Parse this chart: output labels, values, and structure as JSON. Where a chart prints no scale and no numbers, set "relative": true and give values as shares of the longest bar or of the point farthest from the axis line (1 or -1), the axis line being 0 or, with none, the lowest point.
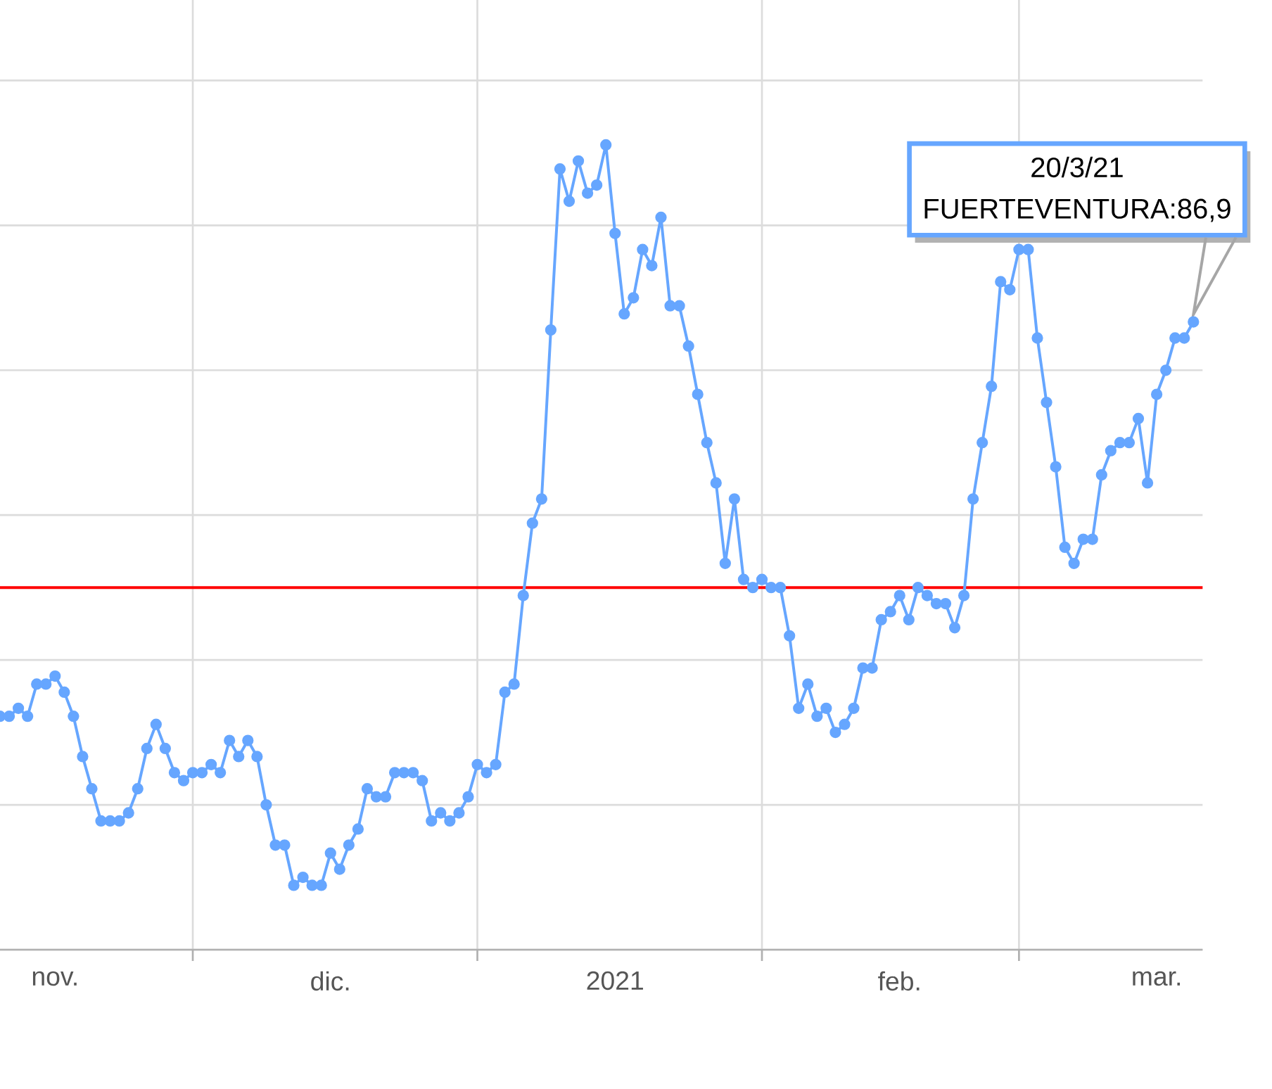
{
  "chart_data": {
    "type": "line",
    "relative": true,
    "color": "#66a6ff",
    "marker": "circle",
    "line_style": "solid",
    "grid": true,
    "tick_labels": "x",
    "x": [
      "2020-11-10",
      "2020-11-11",
      "2020-11-12",
      "2020-11-13",
      "2020-11-14",
      "2020-11-15",
      "2020-11-16",
      "2020-11-17",
      "2020-11-18",
      "2020-11-19",
      "2020-11-20",
      "2020-11-21",
      "2020-11-22",
      "2020-11-23",
      "2020-11-24",
      "2020-11-25",
      "2020-11-26",
      "2020-11-27",
      "2020-11-28",
      "2020-11-29",
      "2020-11-30",
      "2020-12-01",
      "2020-12-02",
      "2020-12-03",
      "2020-12-04",
      "2020-12-05",
      "2020-12-06",
      "2020-12-07",
      "2020-12-08",
      "2020-12-09",
      "2020-12-10",
      "2020-12-11",
      "2020-12-12",
      "2020-12-13",
      "2020-12-14",
      "2020-12-15",
      "2020-12-16",
      "2020-12-17",
      "2020-12-18",
      "2020-12-19",
      "2020-12-20",
      "2020-12-21",
      "2020-12-22",
      "2020-12-23",
      "2020-12-24",
      "2020-12-25",
      "2020-12-26",
      "2020-12-27",
      "2020-12-28",
      "2020-12-29",
      "2020-12-30",
      "2020-12-31",
      "2021-01-01",
      "2021-01-02",
      "2021-01-03",
      "2021-01-04",
      "2021-01-05",
      "2021-01-06",
      "2021-01-07",
      "2021-01-08",
      "2021-01-09",
      "2021-01-10",
      "2021-01-11",
      "2021-01-12",
      "2021-01-13",
      "2021-01-14",
      "2021-01-15",
      "2021-01-16",
      "2021-01-17",
      "2021-01-18",
      "2021-01-19",
      "2021-01-20",
      "2021-01-21",
      "2021-01-22",
      "2021-01-23",
      "2021-01-24",
      "2021-01-25",
      "2021-01-26",
      "2021-01-27",
      "2021-01-28",
      "2021-01-29",
      "2021-01-30",
      "2021-01-31",
      "2021-02-01",
      "2021-02-02",
      "2021-02-03",
      "2021-02-04",
      "2021-02-05",
      "2021-02-06",
      "2021-02-07",
      "2021-02-08",
      "2021-02-09",
      "2021-02-10",
      "2021-02-11",
      "2021-02-12",
      "2021-02-13",
      "2021-02-14",
      "2021-02-15",
      "2021-02-16",
      "2021-02-17",
      "2021-02-18",
      "2021-02-19",
      "2021-02-20",
      "2021-02-21",
      "2021-02-22",
      "2021-02-23",
      "2021-02-24",
      "2021-02-25",
      "2021-02-26",
      "2021-02-27",
      "2021-02-28",
      "2021-03-01",
      "2021-03-02",
      "2021-03-03",
      "2021-03-04",
      "2021-03-05",
      "2021-03-06",
      "2021-03-07",
      "2021-03-08",
      "2021-03-09",
      "2021-03-10",
      "2021-03-11",
      "2021-03-12",
      "2021-03-13",
      "2021-03-14",
      "2021-03-15",
      "2021-03-16",
      "2021-03-17",
      "2021-03-18",
      "2021-03-19",
      "2021-03-20"
    ],
    "values": [
      0.29,
      0.29,
      0.3,
      0.29,
      0.33,
      0.33,
      0.34,
      0.32,
      0.29,
      0.24,
      0.2,
      0.16,
      0.16,
      0.16,
      0.17,
      0.2,
      0.25,
      0.28,
      0.25,
      0.22,
      0.21,
      0.22,
      0.22,
      0.23,
      0.22,
      0.26,
      0.24,
      0.26,
      0.24,
      0.18,
      0.13,
      0.13,
      0.08,
      0.09,
      0.08,
      0.08,
      0.12,
      0.1,
      0.13,
      0.15,
      0.2,
      0.19,
      0.19,
      0.22,
      0.22,
      0.22,
      0.21,
      0.16,
      0.17,
      0.16,
      0.17,
      0.19,
      0.23,
      0.22,
      0.23,
      0.32,
      0.33,
      0.44,
      0.53,
      0.56,
      0.77,
      0.97,
      0.93,
      0.98,
      0.94,
      0.95,
      1,
      0.89,
      0.79,
      0.81,
      0.87,
      0.85,
      0.91,
      0.8,
      0.8,
      0.75,
      0.69,
      0.63,
      0.58,
      0.48,
      0.56,
      0.46,
      0.45,
      0.46,
      0.45,
      0.45,
      0.39,
      0.3,
      0.33,
      0.29,
      0.3,
      0.27,
      0.28,
      0.3,
      0.35,
      0.35,
      0.41,
      0.42,
      0.44,
      0.41,
      0.45,
      0.44,
      0.43,
      0.43,
      0.4,
      0.44,
      0.56,
      0.63,
      0.7,
      0.83,
      0.82,
      0.87,
      0.87,
      0.76,
      0.68,
      0.6,
      0.5,
      0.48,
      0.51,
      0.51,
      0.59,
      0.62,
      0.63,
      0.63,
      0.66,
      0.58,
      0.69,
      0.72,
      0.76,
      0.76,
      0.78
    ],
    "xlim": [
      "2020-11-10",
      "2021-03-21"
    ],
    "xticks": [
      {
        "value": "2020-12-01",
        "label": null
      },
      {
        "value": "2021-01-01",
        "label": null
      },
      {
        "value": "2021-02-01",
        "label": null
      },
      {
        "value": "2021-03-01",
        "label": null
      },
      {
        "value": "2020-11-16",
        "label": "nov."
      },
      {
        "value": "2020-12-16",
        "label": "dic."
      },
      {
        "value": "2021-01-16",
        "label": "2021"
      },
      {
        "value": "2021-02-16",
        "label": "feb."
      },
      {
        "value": "2021-03-16",
        "label": "mar."
      }
    ],
    "ref_lines": [
      {
        "axis": "y",
        "value": 0.45,
        "color": "#ff0000"
      }
    ],
    "annotations": [
      "20/3/21",
      "FUERTEVENTURA:86,9"
    ]
  }
}
